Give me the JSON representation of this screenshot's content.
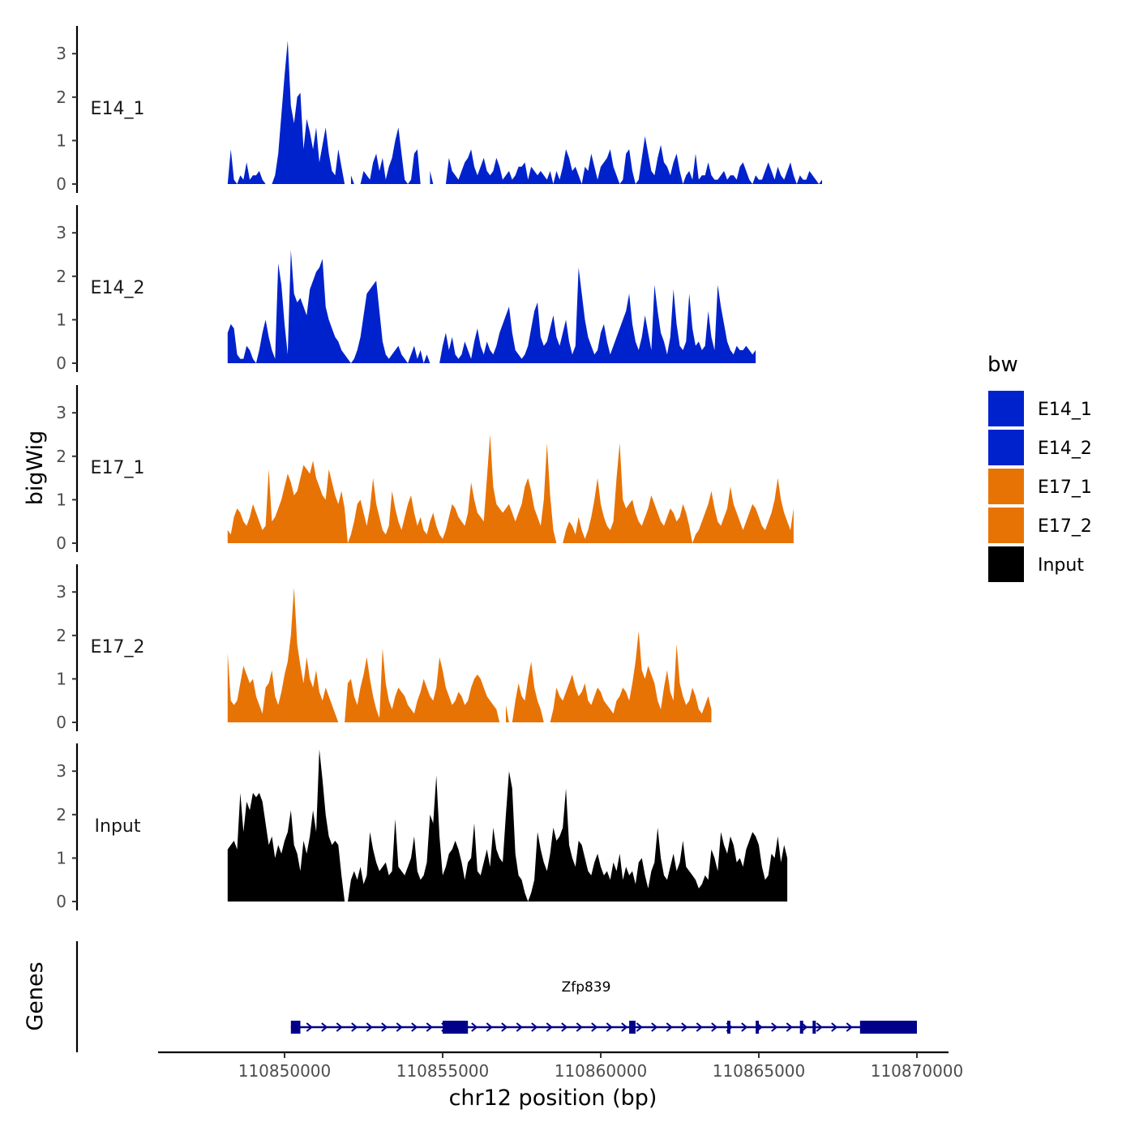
{
  "chart_data": {
    "type": "area",
    "title": "",
    "y_axis_title": "bigWig",
    "x_axis_title": "chr12 position (bp)",
    "genes_axis_title": "Genes",
    "xlim": [
      110846000,
      110871000
    ],
    "x_ticks": [
      110850000,
      110855000,
      110860000,
      110865000,
      110870000
    ],
    "x_tick_labels": [
      "110850000",
      "110855000",
      "110860000",
      "110865000",
      "110870000"
    ],
    "ylim": [
      0,
      3.6
    ],
    "y_ticks": [
      0,
      1,
      2,
      3
    ],
    "y_tick_labels": [
      "0",
      "1",
      "2",
      "3"
    ],
    "legend": {
      "title": "bw",
      "position": "right",
      "entries": [
        {
          "name": "E14_1",
          "color": "#0022CC"
        },
        {
          "name": "E14_2",
          "color": "#0022CC"
        },
        {
          "name": "E17_1",
          "color": "#E87305"
        },
        {
          "name": "E17_2",
          "color": "#E87305"
        },
        {
          "name": "Input",
          "color": "#000000"
        }
      ]
    },
    "series": [
      {
        "name": "E14_1",
        "color": "#0022CC",
        "x_start": 110848200,
        "x_step": 100,
        "values": [
          0,
          0.8,
          0.1,
          0,
          0.2,
          0.1,
          0.5,
          0.1,
          0.2,
          0.2,
          0.3,
          0.1,
          0,
          null,
          0,
          0.2,
          0.7,
          1.6,
          2.5,
          3.3,
          1.8,
          1.4,
          2.0,
          2.1,
          0.8,
          1.5,
          1.2,
          0.8,
          1.3,
          0.5,
          0.9,
          1.3,
          0.7,
          0.3,
          0.2,
          0.8,
          0.4,
          0,
          null,
          0.2,
          0,
          null,
          0,
          0.3,
          0.2,
          0.1,
          0.5,
          0.7,
          0.3,
          0.6,
          0.1,
          0.4,
          0.6,
          1.0,
          1.3,
          0.7,
          0.1,
          0,
          0.1,
          0.7,
          0.8,
          0,
          null,
          null,
          0.3,
          0,
          null,
          null,
          null,
          0,
          0.6,
          0.3,
          0.2,
          0.1,
          0.3,
          0.5,
          0.6,
          0.8,
          0.4,
          0.2,
          0.4,
          0.6,
          0.3,
          0.2,
          0.3,
          0.6,
          0.4,
          0.1,
          0.2,
          0.3,
          0.1,
          0.2,
          0.4,
          0.4,
          0.5,
          0.1,
          0.4,
          0.3,
          0.2,
          0.3,
          0.2,
          0.1,
          0.3,
          0,
          0.3,
          0.1,
          0.4,
          0.8,
          0.6,
          0.3,
          0.4,
          0.2,
          0,
          0.4,
          0.3,
          0.7,
          0.4,
          0.1,
          0.4,
          0.5,
          0.6,
          0.8,
          0.4,
          0.2,
          0,
          0.1,
          0.7,
          0.8,
          0.3,
          0,
          0.1,
          0.6,
          1.1,
          0.7,
          0.3,
          0.2,
          0.6,
          0.9,
          0.5,
          0.4,
          0.2,
          0.5,
          0.7,
          0.3,
          0,
          0.2,
          0.3,
          0.1,
          0.7,
          0.1,
          0.2,
          0.2,
          0.5,
          0.2,
          0.1,
          0.1,
          0.2,
          0.3,
          0.1,
          0.2,
          0.2,
          0.1,
          0.4,
          0.5,
          0.3,
          0.1,
          0,
          0.2,
          0.1,
          0.1,
          0.3,
          0.5,
          0.3,
          0.1,
          0.4,
          0.2,
          0.1,
          0.3,
          0.5,
          0.2,
          0,
          0.2,
          0.1,
          0.1,
          0.3,
          0.2,
          0.1,
          0,
          0.1
        ]
      },
      {
        "name": "E14_2",
        "color": "#0022CC",
        "x_start": 110848200,
        "x_step": 100,
        "values": [
          0.7,
          0.9,
          0.8,
          0.2,
          0.1,
          0.1,
          0.4,
          0.3,
          0.1,
          0,
          0.3,
          0.7,
          1.0,
          0.6,
          0.3,
          0.1,
          2.3,
          1.8,
          0.9,
          0.2,
          2.6,
          1.6,
          1.4,
          1.5,
          1.3,
          1.1,
          1.7,
          1.9,
          2.1,
          2.2,
          2.4,
          1.3,
          1.0,
          0.8,
          0.6,
          0.5,
          0.3,
          0.2,
          0.1,
          0,
          0.1,
          0.3,
          0.6,
          1.1,
          1.6,
          1.7,
          1.8,
          1.9,
          1.2,
          0.5,
          0.2,
          0.1,
          0.2,
          0.3,
          0.4,
          0.2,
          0.1,
          0,
          0.2,
          0.4,
          0.1,
          0.3,
          0,
          0.2,
          0,
          null,
          0,
          0,
          0.4,
          0.7,
          0.3,
          0.6,
          0.2,
          0.1,
          0.2,
          0.5,
          0.3,
          0.1,
          0.5,
          0.8,
          0.4,
          0.2,
          0.5,
          0.3,
          0.2,
          0.4,
          0.7,
          0.9,
          1.1,
          1.3,
          0.7,
          0.3,
          0.2,
          0.1,
          0.2,
          0.4,
          0.8,
          1.2,
          1.4,
          0.6,
          0.4,
          0.5,
          0.8,
          1.1,
          0.6,
          0.4,
          0.7,
          1.0,
          0.5,
          0.2,
          0.4,
          2.2,
          1.6,
          1.0,
          0.6,
          0.4,
          0.2,
          0.3,
          0.7,
          0.9,
          0.5,
          0.2,
          0.4,
          0.6,
          0.8,
          1.0,
          1.2,
          1.6,
          0.9,
          0.5,
          0.3,
          0.6,
          1.1,
          0.7,
          0.3,
          1.8,
          1.2,
          0.7,
          0.5,
          0.2,
          0.6,
          1.7,
          0.9,
          0.4,
          0.3,
          0.5,
          1.6,
          0.8,
          0.4,
          0.5,
          0.3,
          0.4,
          1.2,
          0.6,
          0.3,
          1.8,
          1.3,
          0.9,
          0.5,
          0.3,
          0.2,
          0.4,
          0.3,
          0.3,
          0.4,
          0.3,
          0.2,
          0.3
        ]
      },
      {
        "name": "E17_1",
        "color": "#E87305",
        "x_start": 110848200,
        "x_step": 100,
        "values": [
          0.3,
          0.2,
          0.6,
          0.8,
          0.7,
          0.5,
          0.4,
          0.6,
          0.9,
          0.7,
          0.5,
          0.3,
          0.4,
          1.7,
          0.5,
          0.6,
          0.8,
          1.0,
          1.3,
          1.6,
          1.4,
          1.1,
          1.2,
          1.5,
          1.8,
          1.7,
          1.6,
          1.9,
          1.5,
          1.3,
          1.1,
          1.0,
          1.7,
          1.4,
          1.1,
          0.9,
          1.2,
          0.8,
          0,
          0.2,
          0.5,
          0.9,
          1.0,
          0.7,
          0.4,
          0.8,
          1.5,
          0.9,
          0.6,
          0.3,
          0.2,
          0.4,
          1.2,
          0.8,
          0.5,
          0.3,
          0.6,
          0.9,
          1.1,
          0.7,
          0.4,
          0.6,
          0.3,
          0.2,
          0.5,
          0.7,
          0.4,
          0.2,
          0.1,
          0.3,
          0.6,
          0.9,
          0.8,
          0.6,
          0.5,
          0.4,
          0.7,
          1.4,
          1.0,
          0.7,
          0.6,
          0.5,
          1.5,
          2.5,
          1.3,
          0.9,
          0.8,
          0.7,
          0.8,
          0.9,
          0.7,
          0.5,
          0.7,
          0.9,
          1.3,
          1.5,
          1.2,
          0.8,
          0.6,
          0.4,
          1.0,
          2.3,
          1.1,
          0.3,
          0,
          null,
          0,
          0.3,
          0.5,
          0.4,
          0.2,
          0.6,
          0.3,
          0.1,
          0.3,
          0.6,
          1.0,
          1.5,
          0.9,
          0.6,
          0.4,
          0.3,
          0.5,
          1.5,
          2.3,
          1.0,
          0.8,
          0.9,
          1.0,
          0.7,
          0.5,
          0.4,
          0.6,
          0.8,
          1.1,
          0.9,
          0.7,
          0.5,
          0.4,
          0.6,
          0.8,
          0.7,
          0.5,
          0.6,
          0.9,
          0.7,
          0.4,
          0,
          0.2,
          0.3,
          0.5,
          0.7,
          0.9,
          1.2,
          0.8,
          0.5,
          0.4,
          0.6,
          0.8,
          1.3,
          0.9,
          0.7,
          0.5,
          0.3,
          0.5,
          0.7,
          0.9,
          0.8,
          0.6,
          0.4,
          0.3,
          0.5,
          0.7,
          1.0,
          1.5,
          1.0,
          0.7,
          0.5,
          0.3,
          0.8
        ]
      },
      {
        "name": "E17_2",
        "color": "#E87305",
        "x_start": 110848200,
        "x_step": 100,
        "values": [
          1.6,
          0.5,
          0.4,
          0.5,
          0.9,
          1.3,
          1.1,
          0.9,
          1.0,
          0.6,
          0.4,
          0.2,
          0.8,
          0.9,
          1.2,
          0.6,
          0.4,
          0.7,
          1.1,
          1.4,
          2.0,
          3.1,
          1.8,
          1.3,
          0.9,
          1.5,
          1.0,
          0.8,
          1.2,
          0.7,
          0.5,
          0.8,
          0.6,
          0.4,
          0.2,
          0,
          null,
          0,
          0.9,
          1.0,
          0.6,
          0.4,
          0.8,
          1.1,
          1.5,
          1.0,
          0.6,
          0.3,
          0.1,
          1.7,
          0.9,
          0.5,
          0.3,
          0.6,
          0.8,
          0.7,
          0.6,
          0.4,
          0.3,
          0.2,
          0.5,
          0.7,
          1.0,
          0.8,
          0.6,
          0.5,
          0.8,
          1.5,
          1.2,
          0.8,
          0.6,
          0.4,
          0.5,
          0.7,
          0.6,
          0.4,
          0.5,
          0.8,
          1.0,
          1.1,
          1.0,
          0.8,
          0.6,
          0.5,
          0.4,
          0.3,
          0,
          null,
          0.4,
          0,
          0,
          0.5,
          0.9,
          0.6,
          0.5,
          1.0,
          1.4,
          0.8,
          0.5,
          0.3,
          0,
          null,
          0,
          0.3,
          0.8,
          0.6,
          0.5,
          0.7,
          0.9,
          1.1,
          0.8,
          0.6,
          0.7,
          0.9,
          0.5,
          0.4,
          0.6,
          0.8,
          0.7,
          0.5,
          0.4,
          0.3,
          0.2,
          0.5,
          0.6,
          0.8,
          0.7,
          0.5,
          0.9,
          1.4,
          2.1,
          1.2,
          1.0,
          1.3,
          1.1,
          0.9,
          0.5,
          0.3,
          0.8,
          1.2,
          0.7,
          0.5,
          1.8,
          0.9,
          0.6,
          0.4,
          0.5,
          0.8,
          0.6,
          0.3,
          0.2,
          0.4,
          0.6,
          0.3
        ]
      },
      {
        "name": "Input",
        "color": "#000000",
        "x_start": 110848200,
        "x_step": 100,
        "values": [
          1.2,
          1.3,
          1.4,
          1.2,
          2.5,
          1.6,
          2.3,
          2.1,
          2.5,
          2.4,
          2.5,
          2.3,
          1.8,
          1.3,
          1.5,
          1.0,
          1.3,
          1.1,
          1.4,
          1.6,
          2.1,
          1.3,
          1.1,
          0.7,
          1.4,
          1.1,
          1.5,
          2.1,
          1.6,
          3.5,
          2.8,
          2.0,
          1.5,
          1.3,
          1.4,
          1.3,
          0.6,
          0,
          0,
          0.5,
          0.7,
          0.5,
          0.8,
          0.4,
          0.6,
          1.6,
          1.2,
          0.9,
          0.7,
          0.8,
          0.9,
          0.6,
          0.7,
          1.9,
          0.8,
          0.7,
          0.6,
          0.8,
          1.0,
          1.5,
          0.7,
          0.5,
          0.6,
          0.9,
          2.0,
          1.8,
          2.9,
          1.5,
          0.6,
          0.8,
          1.1,
          1.2,
          1.4,
          1.2,
          0.9,
          0.5,
          0.9,
          1.0,
          1.8,
          0.7,
          0.6,
          0.9,
          1.2,
          0.8,
          1.7,
          1.2,
          1.0,
          0.9,
          2.0,
          3.0,
          2.6,
          1.1,
          0.6,
          0.5,
          0.2,
          0,
          0.2,
          0.5,
          1.6,
          1.2,
          0.9,
          0.7,
          1.1,
          1.7,
          1.4,
          1.5,
          1.7,
          2.6,
          1.3,
          1.0,
          0.8,
          1.4,
          1.3,
          1.0,
          0.7,
          0.6,
          0.9,
          1.1,
          0.8,
          0.6,
          0.7,
          0.5,
          0.9,
          0.7,
          1.1,
          0.5,
          0.8,
          0.6,
          0.7,
          0.4,
          0.9,
          1.0,
          0.6,
          0.3,
          0.7,
          0.9,
          1.7,
          1.0,
          0.6,
          0.5,
          0.8,
          1.1,
          0.7,
          0.9,
          1.4,
          0.8,
          0.7,
          0.6,
          0.5,
          0.3,
          0.4,
          0.6,
          0.5,
          1.2,
          1.0,
          0.7,
          1.6,
          1.3,
          1.1,
          1.5,
          1.3,
          0.9,
          1.0,
          0.8,
          1.2,
          1.4,
          1.6,
          1.5,
          1.3,
          0.8,
          0.5,
          0.6,
          1.1,
          1.0,
          1.5,
          0.9,
          1.3,
          1.0
        ]
      }
    ],
    "genes": [
      {
        "name": "Zfp839",
        "strand": "+",
        "start": 110850200,
        "end": 110870000,
        "exons": [
          [
            110850200,
            110850500
          ],
          [
            110855000,
            110855800
          ],
          [
            110860900,
            110861100
          ],
          [
            110864000,
            110864100
          ],
          [
            110864900,
            110865000
          ],
          [
            110866300,
            110866400
          ],
          [
            110866700,
            110866800
          ],
          [
            110868200,
            110870000
          ]
        ]
      }
    ]
  }
}
